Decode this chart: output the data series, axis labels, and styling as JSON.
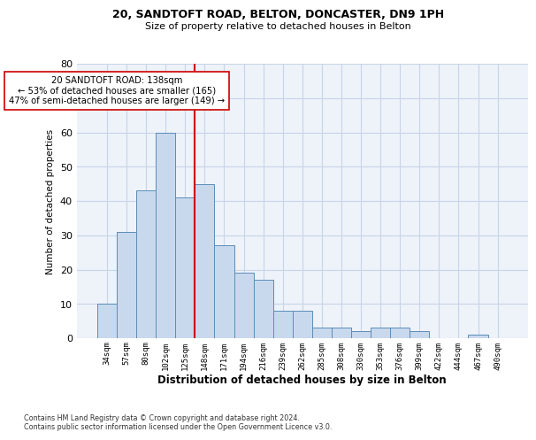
{
  "title_line1": "20, SANDTOFT ROAD, BELTON, DONCASTER, DN9 1PH",
  "title_line2": "Size of property relative to detached houses in Belton",
  "xlabel": "Distribution of detached houses by size in Belton",
  "ylabel": "Number of detached properties",
  "bar_labels": [
    "34sqm",
    "57sqm",
    "80sqm",
    "102sqm",
    "125sqm",
    "148sqm",
    "171sqm",
    "194sqm",
    "216sqm",
    "239sqm",
    "262sqm",
    "285sqm",
    "308sqm",
    "330sqm",
    "353sqm",
    "376sqm",
    "399sqm",
    "422sqm",
    "444sqm",
    "467sqm",
    "490sqm"
  ],
  "bar_values": [
    10,
    31,
    43,
    60,
    41,
    45,
    27,
    19,
    17,
    8,
    8,
    3,
    3,
    2,
    3,
    3,
    2,
    0,
    0,
    1,
    0
  ],
  "bar_color": "#c9d9ed",
  "bar_edge_color": "#5b8db8",
  "vline_x_index": 4,
  "vline_color": "#cc0000",
  "annotation_text": "20 SANDTOFT ROAD: 138sqm\n← 53% of detached houses are smaller (165)\n47% of semi-detached houses are larger (149) →",
  "annotation_box_color": "#ffffff",
  "annotation_box_edge": "#cc0000",
  "ylim": [
    0,
    80
  ],
  "yticks": [
    0,
    10,
    20,
    30,
    40,
    50,
    60,
    70,
    80
  ],
  "grid_color": "#c8d4e8",
  "footnote": "Contains HM Land Registry data © Crown copyright and database right 2024.\nContains public sector information licensed under the Open Government Licence v3.0.",
  "bg_color": "#eef2f9"
}
